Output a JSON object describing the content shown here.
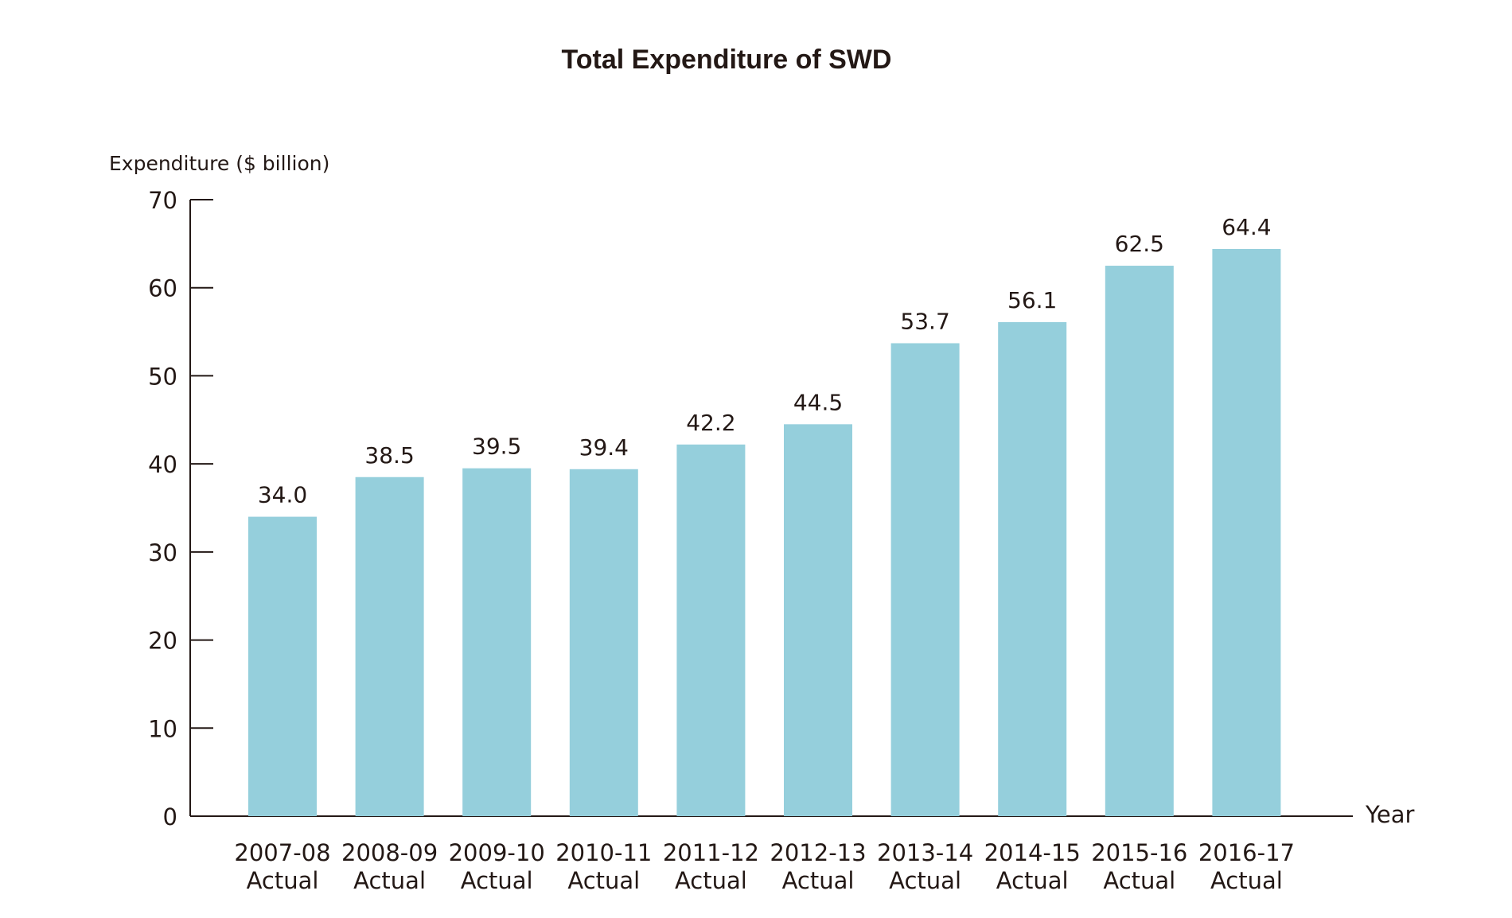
{
  "chart_data": {
    "type": "bar",
    "title": "Total Expenditure of SWD",
    "ylabel": "Expenditure ($ billion)",
    "xlabel": "Year",
    "ylim": [
      0,
      70
    ],
    "yticks": [
      "0",
      "10",
      "20",
      "30",
      "40",
      "50",
      "60",
      "70"
    ],
    "categories": [
      [
        "2007-08",
        "Actual"
      ],
      [
        "2008-09",
        "Actual"
      ],
      [
        "2009-10",
        "Actual"
      ],
      [
        "2010-11",
        "Actual"
      ],
      [
        "2011-12",
        "Actual"
      ],
      [
        "2012-13",
        "Actual"
      ],
      [
        "2013-14",
        "Actual"
      ],
      [
        "2014-15",
        "Actual"
      ],
      [
        "2015-16",
        "Actual"
      ],
      [
        "2016-17",
        "Actual"
      ]
    ],
    "values": [
      34.0,
      38.5,
      39.5,
      39.4,
      42.2,
      44.5,
      53.7,
      56.1,
      62.5,
      64.4
    ],
    "value_labels": [
      "34.0",
      "38.5",
      "39.5",
      "39.4",
      "42.2",
      "44.5",
      "53.7",
      "56.1",
      "62.5",
      "64.4"
    ],
    "bar_color": "#95cfdc",
    "axis_color": "#231815",
    "grid": false,
    "legend": "none"
  }
}
